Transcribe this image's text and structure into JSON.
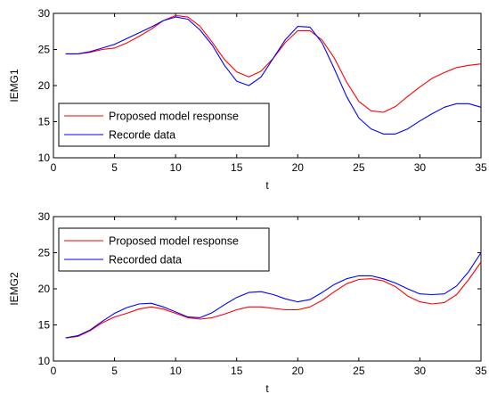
{
  "chart_data": [
    {
      "type": "line",
      "title": "",
      "xlabel": "t",
      "ylabel": "IEMG1",
      "xlim": [
        0,
        35
      ],
      "ylim": [
        10,
        30
      ],
      "xticks": [
        0,
        5,
        10,
        15,
        20,
        25,
        30,
        35
      ],
      "yticks": [
        10,
        15,
        20,
        25,
        30
      ],
      "grid": false,
      "legend_position": "bottom-left",
      "x": [
        1,
        2,
        3,
        4,
        5,
        6,
        7,
        8,
        9,
        10,
        11,
        12,
        13,
        14,
        15,
        16,
        17,
        18,
        19,
        20,
        21,
        22,
        23,
        24,
        25,
        26,
        27,
        28,
        29,
        30,
        31,
        32,
        33,
        34,
        35
      ],
      "series": [
        {
          "name": "Proposed model response",
          "color": "#ff0000",
          "values": [
            24.4,
            24.4,
            24.6,
            25.0,
            25.2,
            25.9,
            26.8,
            27.8,
            29.0,
            29.7,
            29.5,
            28.2,
            26.0,
            23.6,
            21.9,
            21.2,
            22.0,
            23.8,
            26.0,
            27.6,
            27.6,
            26.3,
            23.8,
            20.5,
            17.8,
            16.5,
            16.3,
            17.1,
            18.5,
            19.8,
            21.0,
            21.8,
            22.5,
            22.8,
            23.0
          ]
        },
        {
          "name": "Recorde data",
          "color": "#0000ff",
          "values": [
            24.4,
            24.4,
            24.7,
            25.2,
            25.7,
            26.5,
            27.3,
            28.1,
            29.0,
            29.5,
            29.2,
            27.7,
            25.6,
            22.8,
            20.6,
            20.0,
            21.2,
            23.8,
            26.4,
            28.2,
            28.1,
            25.9,
            22.3,
            18.5,
            15.5,
            14.0,
            13.3,
            13.3,
            14.0,
            15.1,
            16.1,
            17.0,
            17.5,
            17.5,
            17.0
          ]
        }
      ]
    },
    {
      "type": "line",
      "title": "",
      "xlabel": "t",
      "ylabel": "IEMG2",
      "xlim": [
        0,
        35
      ],
      "ylim": [
        10,
        30
      ],
      "xticks": [
        0,
        5,
        10,
        15,
        20,
        25,
        30,
        35
      ],
      "yticks": [
        10,
        15,
        20,
        25,
        30
      ],
      "grid": false,
      "legend_position": "top-left",
      "x": [
        1,
        2,
        3,
        4,
        5,
        6,
        7,
        8,
        9,
        10,
        11,
        12,
        13,
        14,
        15,
        16,
        17,
        18,
        19,
        20,
        21,
        22,
        23,
        24,
        25,
        26,
        27,
        28,
        29,
        30,
        31,
        32,
        33,
        34,
        35
      ],
      "series": [
        {
          "name": "Proposed model response",
          "color": "#ff0000",
          "values": [
            13.2,
            13.4,
            14.2,
            15.3,
            16.1,
            16.6,
            17.2,
            17.5,
            17.2,
            16.6,
            16.0,
            15.8,
            16.0,
            16.5,
            17.1,
            17.5,
            17.5,
            17.3,
            17.1,
            17.1,
            17.5,
            18.4,
            19.6,
            20.7,
            21.3,
            21.4,
            21.1,
            20.3,
            19.0,
            18.2,
            17.9,
            18.1,
            19.2,
            21.3,
            23.7
          ]
        },
        {
          "name": "Recorded data",
          "color": "#0000ff",
          "values": [
            13.2,
            13.5,
            14.3,
            15.5,
            16.6,
            17.4,
            17.9,
            18.0,
            17.5,
            16.8,
            16.1,
            16.0,
            16.7,
            17.8,
            18.8,
            19.5,
            19.6,
            19.2,
            18.6,
            18.2,
            18.5,
            19.5,
            20.6,
            21.4,
            21.8,
            21.8,
            21.4,
            20.8,
            20.0,
            19.3,
            19.2,
            19.3,
            20.4,
            22.4,
            25.0
          ]
        }
      ]
    }
  ]
}
